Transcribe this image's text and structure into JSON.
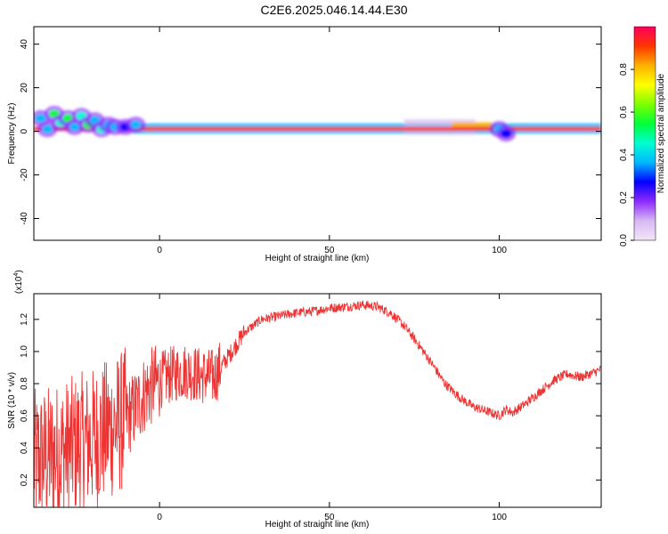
{
  "title": "C2E6.2025.046.14.44.E30",
  "chart_data": [
    {
      "type": "heatmap",
      "xlabel": "Height of straight line (km)",
      "ylabel": "Frequency (Hz)",
      "xlim": [
        -37,
        130
      ],
      "ylim": [
        -50,
        48
      ],
      "xticks": [
        0,
        50,
        100
      ],
      "yticks": [
        -40,
        -20,
        0,
        20,
        40
      ],
      "colorbar": {
        "label": "Normalized spectral amplitude",
        "range": [
          0,
          1
        ],
        "ticks": [
          0.0,
          0.2,
          0.4,
          0.6,
          0.8
        ],
        "tick_labels": [
          "0.0",
          "0.2",
          "0.4",
          "0.6",
          "0.8"
        ],
        "colors": [
          "#f4e6f7",
          "#d7b8f2",
          "#8e2cff",
          "#0000ff",
          "#00b7ff",
          "#00ffd0",
          "#00ff3a",
          "#7dff00",
          "#ffff00",
          "#ffb000",
          "#ff3500",
          "#ff0060"
        ]
      },
      "bands": [
        {
          "x": [
            -37,
            130
          ],
          "y": [
            0.2,
            2.0
          ],
          "value": 0.9
        },
        {
          "x": [
            -8,
            130
          ],
          "y": [
            -1.0,
            3.5
          ],
          "value": 0.35
        },
        {
          "x": [
            72,
            93
          ],
          "y": [
            -1.5,
            5.5
          ],
          "value": 0.12
        },
        {
          "x": [
            86,
            98
          ],
          "y": [
            2.2,
            4.0
          ],
          "value": 0.85
        }
      ],
      "blobs": [
        {
          "x": -35,
          "y": 6,
          "value": 0.35
        },
        {
          "x": -33,
          "y": 1,
          "value": 0.4
        },
        {
          "x": -31,
          "y": 8,
          "value": 0.5
        },
        {
          "x": -29,
          "y": 4,
          "value": 0.45
        },
        {
          "x": -27,
          "y": 6,
          "value": 0.55
        },
        {
          "x": -25,
          "y": 2,
          "value": 0.4
        },
        {
          "x": -23,
          "y": 7,
          "value": 0.45
        },
        {
          "x": -21,
          "y": 3,
          "value": 0.5
        },
        {
          "x": -19,
          "y": 5,
          "value": 0.4
        },
        {
          "x": -17,
          "y": 1,
          "value": 0.45
        },
        {
          "x": -15,
          "y": 3,
          "value": 0.35
        },
        {
          "x": -13,
          "y": 2,
          "value": 0.4
        },
        {
          "x": -10,
          "y": 2,
          "value": 0.3
        },
        {
          "x": -7,
          "y": 3,
          "value": 0.35
        },
        {
          "x": 100,
          "y": 1,
          "value": 0.35
        },
        {
          "x": 102,
          "y": -1,
          "value": 0.3
        }
      ]
    },
    {
      "type": "line",
      "xlabel": "Height of straight line (km)",
      "ylabel": "SNR (10 * v/v)",
      "y_multiplier": "(x10^4)",
      "multiplier_base": "(x10",
      "multiplier_exp": "4",
      "multiplier_close": ")",
      "xlim": [
        -37,
        130
      ],
      "ylim": [
        0.03,
        1.36
      ],
      "xticks": [
        0,
        50,
        100
      ],
      "yticks": [
        0.2,
        0.4,
        0.6,
        0.8,
        1.0,
        1.2
      ],
      "ytick_labels": [
        "0.2",
        "0.4",
        "0.6",
        "0.8",
        "1.0",
        "1.2"
      ],
      "color": "#ee3333",
      "series": [
        {
          "x": [
            -37,
            -32,
            -28,
            -24,
            -20,
            -16,
            -12,
            -8,
            -4,
            0,
            4,
            8,
            12,
            16,
            20,
            25,
            30,
            35,
            40,
            45,
            50,
            55,
            60,
            64,
            68,
            72,
            76,
            80,
            84,
            88,
            92,
            96,
            100,
            102,
            104,
            108,
            112,
            116,
            120,
            124,
            128,
            130
          ],
          "y": [
            0.32,
            0.35,
            0.38,
            0.42,
            0.45,
            0.5,
            0.55,
            0.62,
            0.75,
            0.82,
            0.86,
            0.88,
            0.85,
            0.84,
            0.96,
            1.12,
            1.2,
            1.22,
            1.24,
            1.25,
            1.27,
            1.28,
            1.29,
            1.28,
            1.24,
            1.16,
            1.05,
            0.93,
            0.8,
            0.72,
            0.66,
            0.63,
            0.6,
            0.64,
            0.62,
            0.68,
            0.75,
            0.82,
            0.86,
            0.84,
            0.87,
            0.89
          ]
        }
      ]
    }
  ]
}
